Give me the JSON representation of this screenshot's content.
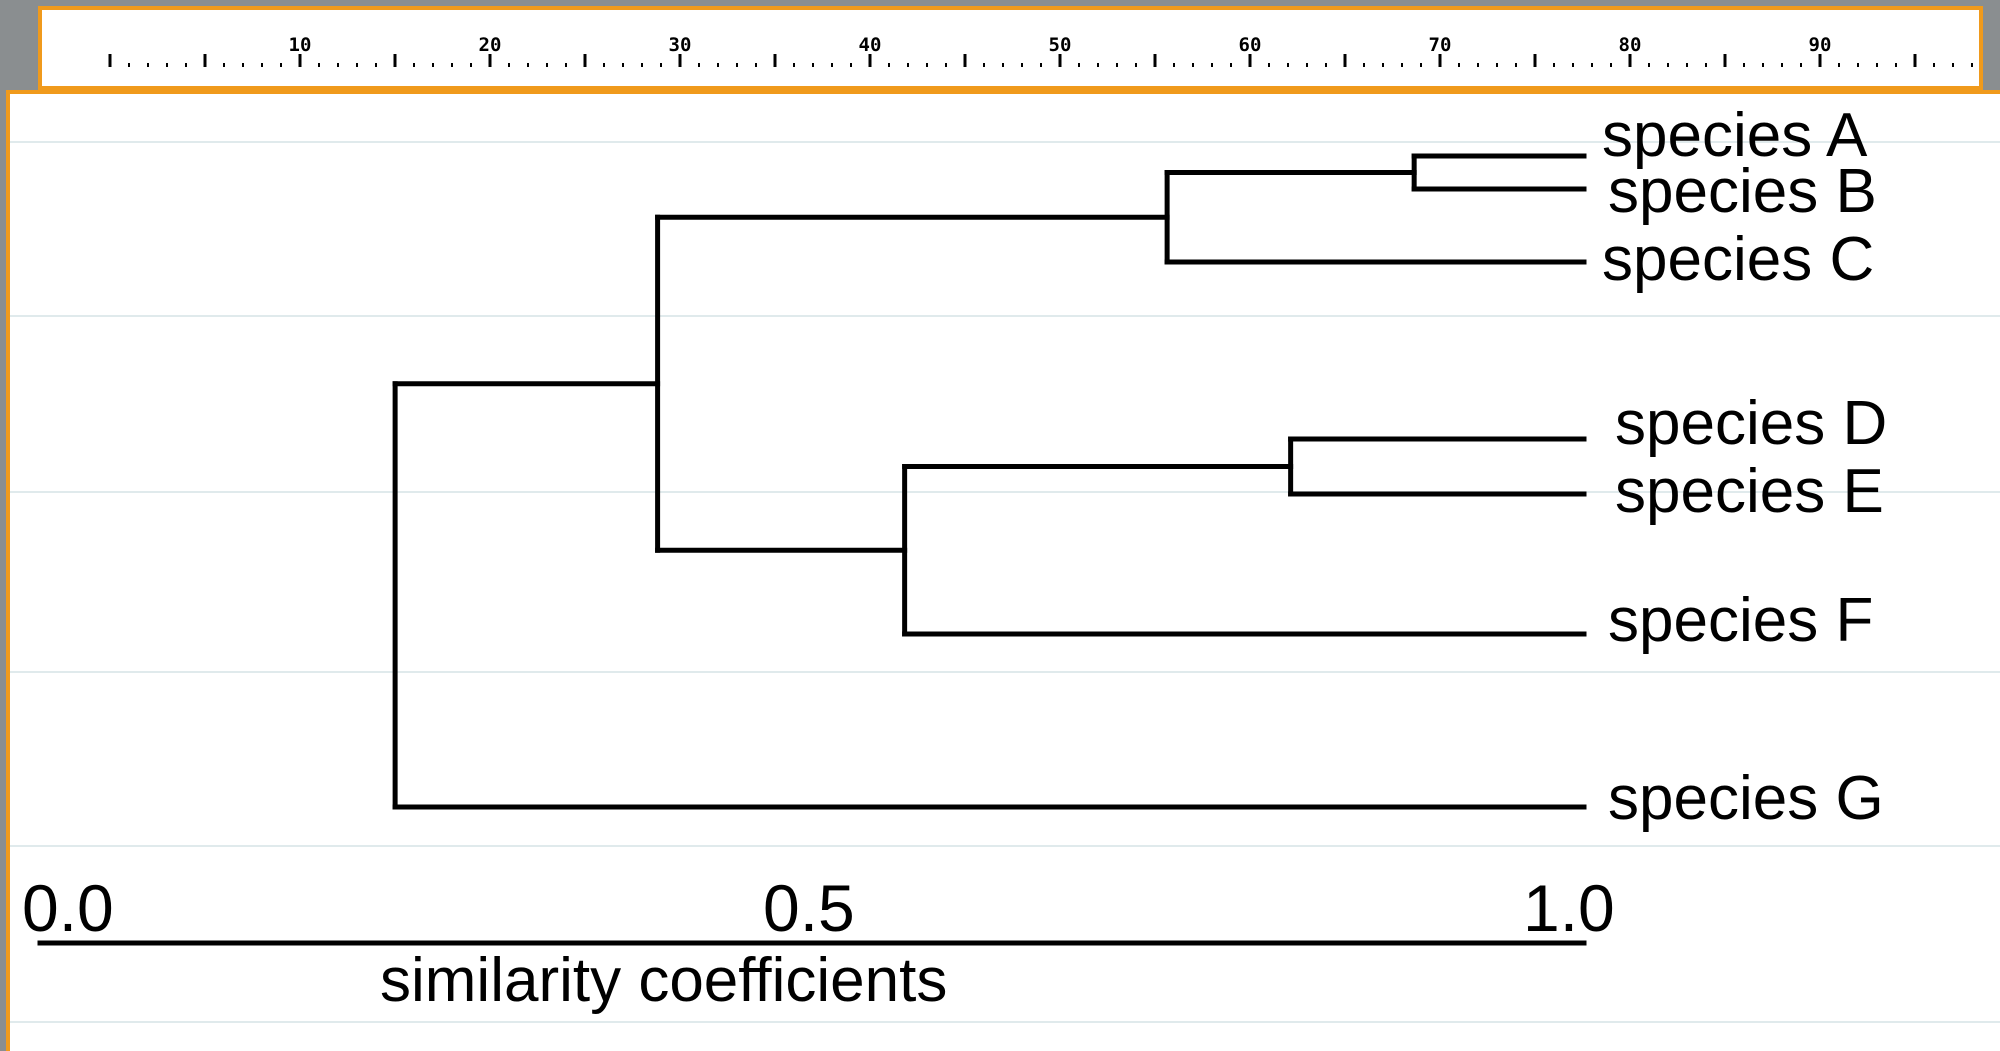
{
  "ruler": {
    "labels": [
      "10",
      "20",
      "30",
      "40",
      "50",
      "60",
      "70",
      "80",
      "90"
    ]
  },
  "dendrogram": {
    "leaves": [
      "species A",
      "species B",
      "species C",
      "species D",
      "species E",
      "species F",
      "species G"
    ],
    "axis": {
      "tick_labels": [
        "0.0",
        "0.5",
        "1.0"
      ],
      "tick_values": [
        0.0,
        0.5,
        1.0
      ],
      "title": "similarity coefficients"
    },
    "merges": [
      {
        "name": "A+B",
        "children": [
          "species A",
          "species B"
        ],
        "similarity": 0.89
      },
      {
        "name": "AB+C",
        "children": [
          "A+B",
          "species C"
        ],
        "similarity": 0.73
      },
      {
        "name": "D+E",
        "children": [
          "species D",
          "species E"
        ],
        "similarity": 0.81
      },
      {
        "name": "DE+F",
        "children": [
          "D+E",
          "species F"
        ],
        "similarity": 0.56
      },
      {
        "name": "ABC+DEF",
        "children": [
          "AB+C",
          "DE+F"
        ],
        "similarity": 0.4
      },
      {
        "name": "root",
        "children": [
          "ABC+DEF",
          "species G"
        ],
        "similarity": 0.23
      }
    ]
  }
}
